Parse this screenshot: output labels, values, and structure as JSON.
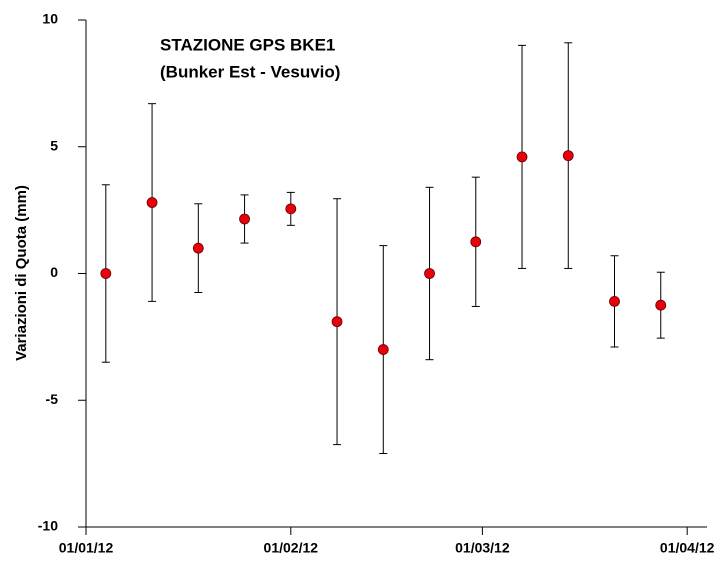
{
  "chart_data": {
    "type": "errorbar",
    "title": "STAZIONE GPS BKE1",
    "subtitle": "(Bunker Est - Vesuvio)",
    "y_label": "Variazioni di Quota (mm)",
    "x": [
      "2012-01-04",
      "2012-01-11",
      "2012-01-18",
      "2012-01-25",
      "2012-02-01",
      "2012-02-08",
      "2012-02-15",
      "2012-02-22",
      "2012-02-29",
      "2012-03-07",
      "2012-03-14",
      "2012-03-21",
      "2012-03-28"
    ],
    "values": [
      0,
      2.8,
      1.0,
      2.15,
      2.55,
      -1.9,
      -3.0,
      0,
      1.25,
      4.6,
      4.65,
      -1.1,
      -1.25
    ],
    "errors": [
      3.5,
      3.9,
      1.75,
      0.95,
      0.65,
      4.85,
      4.1,
      3.4,
      2.55,
      4.4,
      4.45,
      1.8,
      1.3
    ],
    "color": "#e8000b",
    "xlim": [
      "2012-01-01",
      "2012-04-04"
    ],
    "xticks": [
      {
        "value": "2012-01-01",
        "label": "01/01/12"
      },
      {
        "value": "2012-02-01",
        "label": "01/02/12"
      },
      {
        "value": "2012-03-01",
        "label": "01/03/12"
      },
      {
        "value": "2012-04-01",
        "label": "01/04/12"
      }
    ],
    "ylim": [
      -10,
      10
    ],
    "yticks": [
      -10,
      -5,
      0,
      5,
      10
    ]
  }
}
